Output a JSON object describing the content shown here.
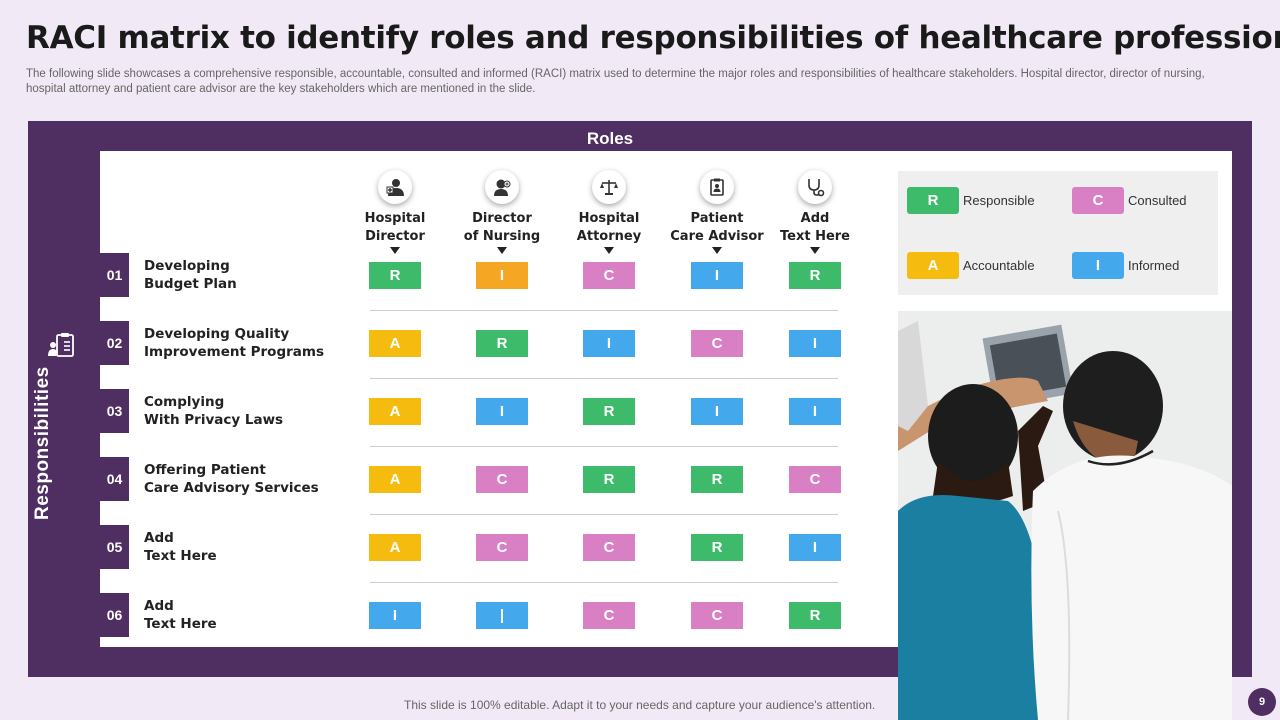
{
  "title": "RACI matrix to identify roles and responsibilities of healthcare professionals",
  "subtitle": "The following slide showcases a comprehensive responsible, accountable, consulted and informed (RACI) matrix used to determine the major roles and responsibilities of healthcare stakeholders. Hospital director, director of nursing, hospital attorney and patient care advisor are the key stakeholders which are mentioned in the slide.",
  "roles_header": "Roles",
  "responsibilities_label": "Responsibilities",
  "roles": [
    {
      "name": "Hospital\nDirector",
      "icon": "doctor-icon"
    },
    {
      "name": "Director\nof Nursing",
      "icon": "nurse-icon"
    },
    {
      "name": "Hospital\nAttorney",
      "icon": "scales-icon"
    },
    {
      "name": "Patient\nCare Advisor",
      "icon": "clipboard-patient-icon"
    },
    {
      "name": "Add\nText Here",
      "icon": "stethoscope-icon"
    }
  ],
  "rows": [
    {
      "num": "01",
      "label": "Developing\nBudget Plan",
      "cells": [
        "R",
        "I",
        "C",
        "I",
        "R"
      ]
    },
    {
      "num": "02",
      "label": "Developing Quality\nImprovement Programs",
      "cells": [
        "A",
        "R",
        "I",
        "C",
        "I"
      ]
    },
    {
      "num": "03",
      "label": "Complying\nWith Privacy Laws",
      "cells": [
        "A",
        "I",
        "R",
        "I",
        "I"
      ]
    },
    {
      "num": "04",
      "label": "Offering Patient\nCare Advisory Services",
      "cells": [
        "A",
        "C",
        "R",
        "R",
        "C"
      ]
    },
    {
      "num": "05",
      "label": "Add\nText Here",
      "cells": [
        "A",
        "C",
        "C",
        "R",
        "I"
      ]
    },
    {
      "num": "06",
      "label": "Add\nText Here",
      "cells": [
        "I",
        "|",
        "C",
        "C",
        "R"
      ]
    }
  ],
  "cell_overrides": {
    "0-1": "#f5a623"
  },
  "legend": [
    {
      "letter": "R",
      "label": "Responsible",
      "color": "#3dba6a"
    },
    {
      "letter": "C",
      "label": "Consulted",
      "color": "#d97fc4"
    },
    {
      "letter": "A",
      "label": "Accountable",
      "color": "#f6bb0f"
    },
    {
      "letter": "I",
      "label": "Informed",
      "color": "#43a9ec"
    }
  ],
  "colors": {
    "R": "#3dba6a",
    "A": "#f6bb0f",
    "C": "#d97fc4",
    "I": "#43a9ec",
    "|": "#43a9ec",
    "frame": "#4f2e62"
  },
  "footer": "This slide is 100% editable. Adapt it to your needs and capture your audience's attention.",
  "page_number": "9"
}
